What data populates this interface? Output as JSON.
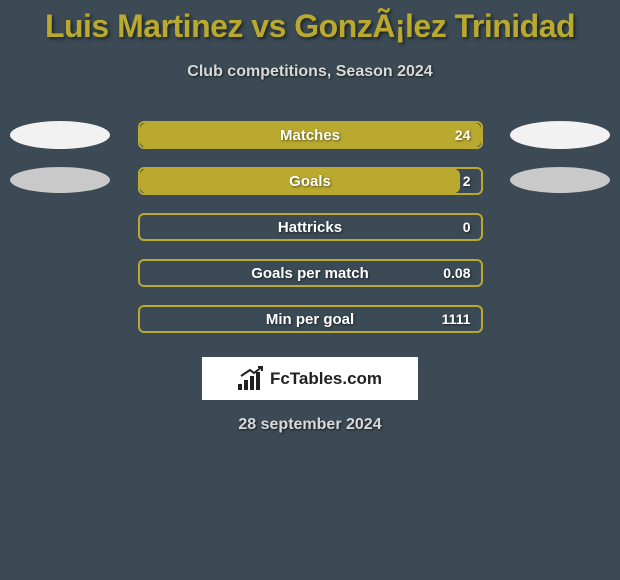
{
  "background_color": "#3b4a54",
  "title": {
    "text": "Luis Martinez vs GonzÃ¡lez Trinidad",
    "color": "#b9a92e"
  },
  "subtitle": {
    "text": "Club competitions, Season 2024"
  },
  "bar_border_color": "#b9a92e",
  "bar_fill_color": "#b9a92e",
  "bar_bg_color": "transparent",
  "ellipse_white": "#f2f2f2",
  "ellipse_gray": "#c9c9c9",
  "stats": [
    {
      "label": "Matches",
      "value": "24",
      "fill_pct": 100,
      "show_ellipses": true,
      "ellipse_left_color": "#f2f2f2",
      "ellipse_right_color": "#f2f2f2",
      "ellipse_class": "ellipse-1"
    },
    {
      "label": "Goals",
      "value": "2",
      "fill_pct": 94,
      "show_ellipses": true,
      "ellipse_left_color": "#c9c9c9",
      "ellipse_right_color": "#c9c9c9",
      "ellipse_class": "ellipse-2"
    },
    {
      "label": "Hattricks",
      "value": "0",
      "fill_pct": 0,
      "show_ellipses": false
    },
    {
      "label": "Goals per match",
      "value": "0.08",
      "fill_pct": 0,
      "show_ellipses": false
    },
    {
      "label": "Min per goal",
      "value": "1111",
      "fill_pct": 0,
      "show_ellipses": false
    }
  ],
  "footer": {
    "logo_bg": "#ffffff",
    "logo_text": "FcTables.com",
    "logo_text_color": "#222222",
    "bar_colors": "#222222",
    "date": "28 september 2024"
  }
}
